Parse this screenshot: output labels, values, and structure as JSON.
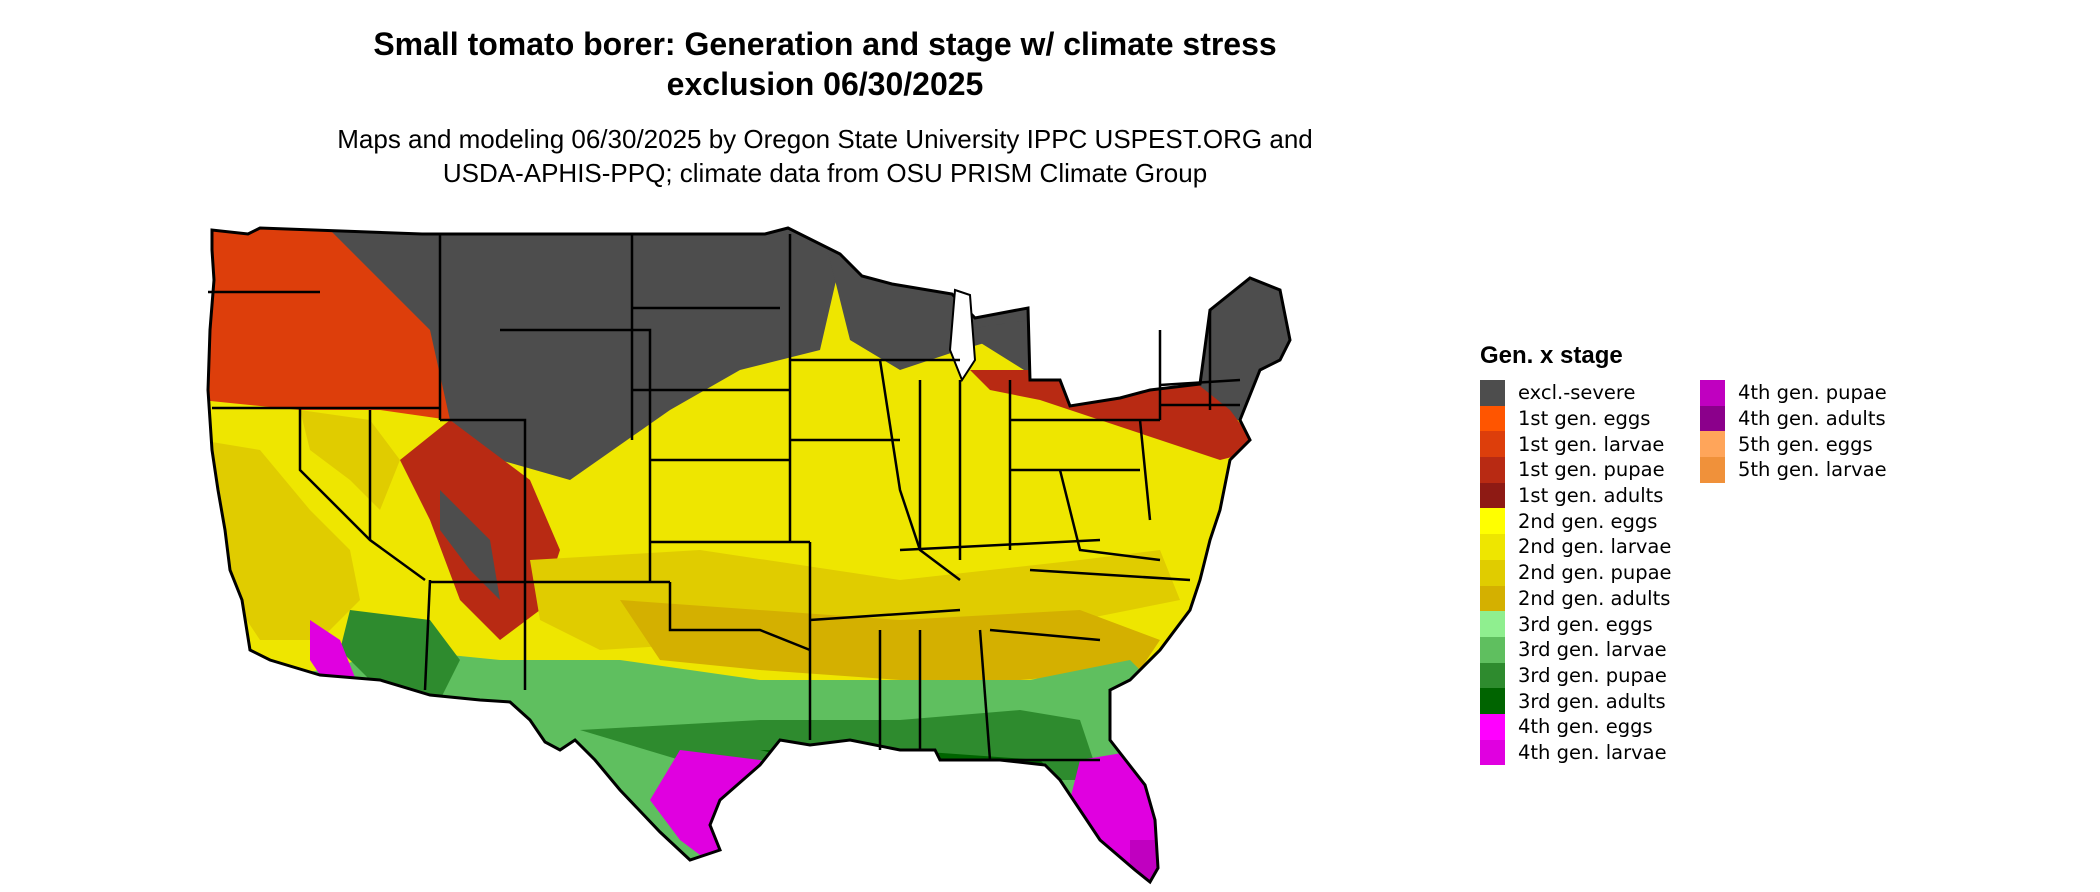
{
  "title_line1": "Small tomato borer: Generation and stage w/ climate stress",
  "title_line2": "exclusion 06/30/2025",
  "subtitle_line1": "Maps and modeling 06/30/2025 by Oregon State University IPPC USPEST.ORG and",
  "subtitle_line2": "USDA-APHIS-PPQ; climate data from OSU PRISM Climate Group",
  "legend": {
    "title": "Gen. x stage",
    "items": [
      {
        "label": "excl.-severe",
        "color": "#4d4d4d"
      },
      {
        "label": "1st gen. eggs",
        "color": "#ff5500"
      },
      {
        "label": "1st gen. larvae",
        "color": "#dd3e0b"
      },
      {
        "label": "1st gen. pupae",
        "color": "#b82a13"
      },
      {
        "label": "1st gen. adults",
        "color": "#8e1a14"
      },
      {
        "label": "2nd gen. eggs",
        "color": "#ffff00"
      },
      {
        "label": "2nd gen. larvae",
        "color": "#eee600"
      },
      {
        "label": "2nd gen. pupae",
        "color": "#e0cc00"
      },
      {
        "label": "2nd gen. adults",
        "color": "#d4b000"
      },
      {
        "label": "3rd gen. eggs",
        "color": "#8fef8f"
      },
      {
        "label": "3rd gen. larvae",
        "color": "#5fbf5f"
      },
      {
        "label": "3rd gen. pupae",
        "color": "#2e8b2e"
      },
      {
        "label": "3rd gen. adults",
        "color": "#006400"
      },
      {
        "label": "4th gen. eggs",
        "color": "#ff00ff"
      },
      {
        "label": "4th gen. larvae",
        "color": "#e000e0"
      },
      {
        "label": "4th gen. pupae",
        "color": "#c000c0"
      },
      {
        "label": "4th gen. adults",
        "color": "#8b008b"
      },
      {
        "label": "5th gen. eggs",
        "color": "#ffa55a"
      },
      {
        "label": "5th gen. larvae",
        "color": "#f0913a"
      }
    ]
  }
}
